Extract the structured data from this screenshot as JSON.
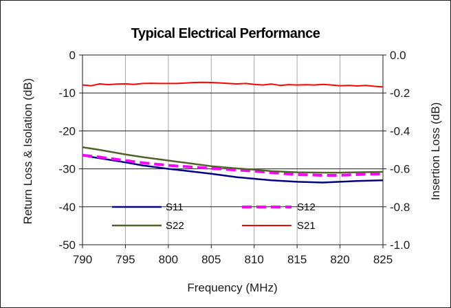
{
  "chart_data": {
    "type": "line",
    "title": "Typical Electrical Performance",
    "xlabel": "Frequency (MHz)",
    "ylabel": "Return Loss & Isolation (dB)",
    "y2label": "Insertion Loss (dB)",
    "xlim": [
      790,
      825
    ],
    "ylim": [
      -50,
      0
    ],
    "y2lim": [
      -1.0,
      0.0
    ],
    "x_ticks": [
      "790",
      "795",
      "800",
      "805",
      "810",
      "815",
      "820",
      "825"
    ],
    "y_ticks": [
      "0",
      "-10",
      "-20",
      "-30",
      "-40",
      "-50"
    ],
    "y2_ticks": [
      "0.0",
      "-0.2",
      "-0.4",
      "-0.6",
      "-0.8",
      "-1.0"
    ],
    "grid": "vertical and horizontal major gridlines",
    "legend_position": "bottom-center inside plot",
    "series": [
      {
        "name": "S11",
        "axis": "left",
        "color": "#000080",
        "style": "solid",
        "x": [
          790,
          792,
          795,
          797,
          800,
          802,
          805,
          808,
          810,
          812,
          815,
          818,
          820,
          822,
          825
        ],
        "values": [
          -26.5,
          -27.2,
          -28.3,
          -29.1,
          -30.0,
          -30.5,
          -31.3,
          -32.2,
          -32.6,
          -33.0,
          -33.4,
          -33.6,
          -33.4,
          -33.2,
          -33.0
        ]
      },
      {
        "name": "S12",
        "axis": "left",
        "color": "#ff00ff",
        "style": "dashed",
        "x": [
          790,
          792,
          795,
          797,
          800,
          802,
          805,
          808,
          810,
          812,
          815,
          818,
          820,
          822,
          825
        ],
        "values": [
          -26.4,
          -26.9,
          -27.8,
          -28.4,
          -29.1,
          -29.4,
          -29.9,
          -30.3,
          -30.6,
          -31.0,
          -31.5,
          -31.7,
          -31.7,
          -31.5,
          -31.3
        ]
      },
      {
        "name": "S22",
        "axis": "left",
        "color": "#4f6228",
        "style": "solid",
        "x": [
          790,
          792,
          795,
          797,
          800,
          802,
          805,
          808,
          810,
          812,
          815,
          818,
          820,
          822,
          825
        ],
        "values": [
          -24.3,
          -25.0,
          -26.2,
          -26.9,
          -27.8,
          -28.4,
          -29.3,
          -29.9,
          -30.2,
          -30.6,
          -30.9,
          -31.0,
          -31.0,
          -30.9,
          -30.8
        ]
      },
      {
        "name": "S21",
        "axis": "right",
        "color": "#ff0000",
        "style": "solid",
        "x": [
          790,
          791,
          792,
          793,
          794,
          795,
          796,
          797,
          798,
          799,
          800,
          801,
          802,
          803,
          804,
          805,
          806,
          807,
          808,
          809,
          810,
          811,
          812,
          813,
          814,
          815,
          816,
          817,
          818,
          819,
          820,
          821,
          822,
          823,
          824,
          825
        ],
        "values": [
          -0.158,
          -0.162,
          -0.152,
          -0.156,
          -0.153,
          -0.152,
          -0.155,
          -0.15,
          -0.149,
          -0.15,
          -0.15,
          -0.15,
          -0.148,
          -0.145,
          -0.144,
          -0.145,
          -0.147,
          -0.15,
          -0.152,
          -0.15,
          -0.155,
          -0.158,
          -0.153,
          -0.16,
          -0.156,
          -0.158,
          -0.157,
          -0.158,
          -0.155,
          -0.158,
          -0.162,
          -0.16,
          -0.163,
          -0.16,
          -0.165,
          -0.168
        ]
      }
    ]
  }
}
